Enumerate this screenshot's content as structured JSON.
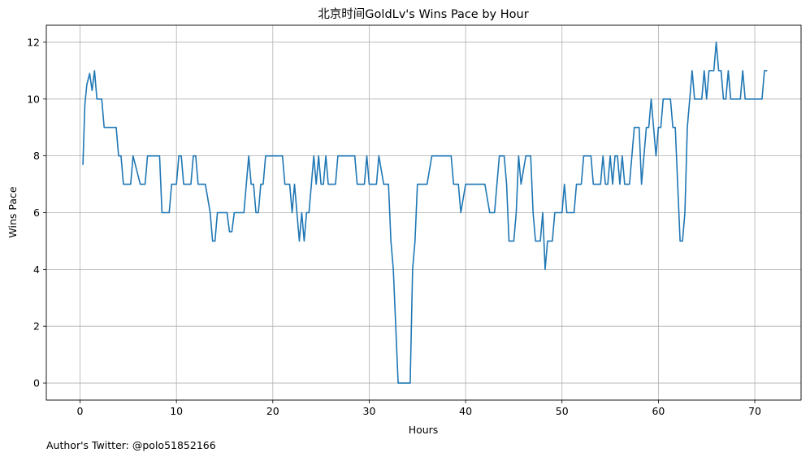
{
  "chart_data": {
    "type": "line",
    "title": "北京时间GoldLv's Wins Pace by Hour",
    "xlabel": "Hours",
    "ylabel": "Wins Pace",
    "xlim": [
      -3.5,
      74.8
    ],
    "ylim": [
      -0.6,
      12.6
    ],
    "xticks": [
      0,
      10,
      20,
      30,
      40,
      50,
      60,
      70
    ],
    "yticks": [
      0,
      2,
      4,
      6,
      8,
      10,
      12
    ],
    "grid": true,
    "line_color": "#1f77b4",
    "series": [
      {
        "x": [
          0.3,
          0.5,
          0.7,
          1.0,
          1.25,
          1.5,
          1.75,
          2.0,
          2.25,
          2.5,
          2.75,
          3.0,
          3.5,
          3.75,
          4.0,
          4.25,
          4.5,
          4.75,
          5.0,
          5.25,
          5.5,
          6.25,
          6.75,
          7.0,
          7.75,
          8.25,
          8.5,
          9.25,
          9.5,
          10.0,
          10.25,
          10.5,
          10.75,
          11.5,
          11.75,
          12.0,
          12.25,
          13.0,
          13.5,
          13.75,
          14.0,
          14.25,
          15.0,
          15.25,
          15.5,
          15.75,
          16.0,
          16.75,
          17.0,
          17.5,
          17.75,
          18.0,
          18.25,
          18.5,
          18.75,
          19.0,
          19.25,
          19.5,
          20.0,
          20.5,
          21.0,
          21.25,
          21.5,
          21.75,
          22.0,
          22.25,
          22.5,
          22.75,
          23.0,
          23.25,
          23.5,
          23.75,
          24.0,
          24.25,
          24.5,
          24.75,
          25.0,
          25.25,
          25.5,
          25.75,
          26.0,
          26.25,
          26.5,
          26.75,
          27.0,
          27.75,
          28.0,
          28.25,
          28.5,
          28.75,
          29.0,
          29.25,
          29.5,
          29.75,
          30.0,
          30.25,
          30.5,
          30.75,
          31.0,
          31.5,
          31.75,
          32.0,
          32.25,
          32.5,
          33.0,
          33.5,
          34.0,
          34.25,
          34.5,
          34.75,
          35.0,
          35.5,
          36.0,
          36.5,
          37.0,
          37.5,
          38.0,
          38.25,
          38.5,
          38.75,
          39.0,
          39.25,
          39.5,
          40.0,
          40.5,
          41.0,
          41.5,
          41.75,
          42.0,
          42.5,
          42.75,
          43.0,
          43.25,
          43.5,
          43.75,
          44.0,
          44.25,
          44.5,
          44.75,
          45.0,
          45.25,
          45.5,
          45.75,
          46.25,
          46.5,
          46.75,
          47.0,
          47.25,
          47.5,
          47.75,
          48.0,
          48.25,
          48.5,
          48.75,
          49.0,
          49.25,
          49.5,
          49.75,
          50.0,
          50.25,
          50.5,
          50.75,
          51.0,
          51.25,
          51.5,
          51.75,
          52.0,
          52.25,
          52.5,
          52.75,
          53.0,
          53.25,
          53.5,
          53.75,
          54.0,
          54.25,
          54.5,
          54.75,
          55.0,
          55.25,
          55.5,
          55.75,
          56.0,
          56.25,
          56.5,
          56.75,
          57.0,
          57.25,
          57.5,
          57.75,
          58.0,
          58.25,
          58.5,
          58.75,
          59.0,
          59.25,
          59.5,
          59.75,
          60.0,
          60.25,
          60.5,
          60.75,
          61.0,
          61.25,
          61.5,
          61.75,
          62.0,
          62.25,
          62.5,
          62.75,
          63.0,
          63.25,
          63.5,
          63.75,
          64.0,
          64.25,
          64.5,
          64.75,
          65.0,
          65.25,
          65.5,
          65.75,
          66.0,
          66.25,
          66.5,
          66.75,
          67.0,
          67.25,
          67.5,
          67.75,
          68.0,
          68.25,
          68.5,
          68.75,
          69.0,
          69.25,
          69.5,
          69.75,
          70.0,
          70.25,
          70.5,
          70.75,
          71.0,
          71.25
        ],
        "y": [
          7.7,
          9.8,
          10.5,
          10.9,
          10.3,
          11.0,
          10.0,
          10.0,
          10.0,
          9.0,
          9.0,
          9.0,
          9.0,
          9.0,
          8.0,
          8.0,
          7.0,
          7.0,
          7.0,
          7.0,
          8.0,
          7.0,
          7.0,
          8.0,
          8.0,
          8.0,
          6.0,
          6.0,
          7.0,
          7.0,
          8.0,
          8.0,
          7.0,
          7.0,
          8.0,
          8.0,
          7.0,
          7.0,
          6.0,
          5.0,
          5.0,
          6.0,
          6.0,
          6.0,
          5.33,
          5.33,
          6.0,
          6.0,
          6.0,
          8.0,
          7.0,
          7.0,
          6.0,
          6.0,
          7.0,
          7.0,
          8.0,
          8.0,
          8.0,
          8.0,
          8.0,
          7.0,
          7.0,
          7.0,
          6.0,
          7.0,
          6.0,
          5.0,
          6.0,
          5.0,
          6.0,
          6.0,
          7.0,
          8.0,
          7.0,
          8.0,
          7.0,
          7.0,
          8.0,
          7.0,
          7.0,
          7.0,
          7.0,
          8.0,
          8.0,
          8.0,
          8.0,
          8.0,
          8.0,
          7.0,
          7.0,
          7.0,
          7.0,
          8.0,
          7.0,
          7.0,
          7.0,
          7.0,
          8.0,
          7.0,
          7.0,
          7.0,
          5.0,
          4.0,
          0.0,
          0.0,
          0.0,
          0.0,
          4.0,
          5.0,
          7.0,
          7.0,
          7.0,
          8.0,
          8.0,
          8.0,
          8.0,
          8.0,
          8.0,
          7.0,
          7.0,
          7.0,
          6.0,
          7.0,
          7.0,
          7.0,
          7.0,
          7.0,
          7.0,
          6.0,
          6.0,
          6.0,
          7.0,
          8.0,
          8.0,
          8.0,
          7.0,
          5.0,
          5.0,
          5.0,
          6.0,
          8.0,
          7.0,
          8.0,
          8.0,
          8.0,
          6.0,
          5.0,
          5.0,
          5.0,
          6.0,
          4.0,
          5.0,
          5.0,
          5.0,
          6.0,
          6.0,
          6.0,
          6.0,
          7.0,
          6.0,
          6.0,
          6.0,
          6.0,
          7.0,
          7.0,
          7.0,
          8.0,
          8.0,
          8.0,
          8.0,
          7.0,
          7.0,
          7.0,
          7.0,
          8.0,
          7.0,
          7.0,
          8.0,
          7.0,
          8.0,
          8.0,
          7.0,
          8.0,
          7.0,
          7.0,
          7.0,
          8.0,
          9.0,
          9.0,
          9.0,
          7.0,
          8.0,
          9.0,
          9.0,
          10.0,
          9.0,
          8.0,
          9.0,
          9.0,
          10.0,
          10.0,
          10.0,
          10.0,
          9.0,
          9.0,
          7.0,
          5.0,
          5.0,
          6.0,
          9.0,
          10.0,
          11.0,
          10.0,
          10.0,
          10.0,
          10.0,
          11.0,
          10.0,
          11.0,
          11.0,
          11.0,
          12.0,
          11.0,
          11.0,
          10.0,
          10.0,
          11.0,
          10.0,
          10.0,
          10.0,
          10.0,
          10.0,
          11.0,
          10.0,
          10.0,
          10.0,
          10.0,
          10.0,
          10.0,
          10.0,
          10.0,
          11.0,
          11.0
        ]
      }
    ]
  },
  "footer": {
    "text": "Author's Twitter: @polo51852166"
  }
}
